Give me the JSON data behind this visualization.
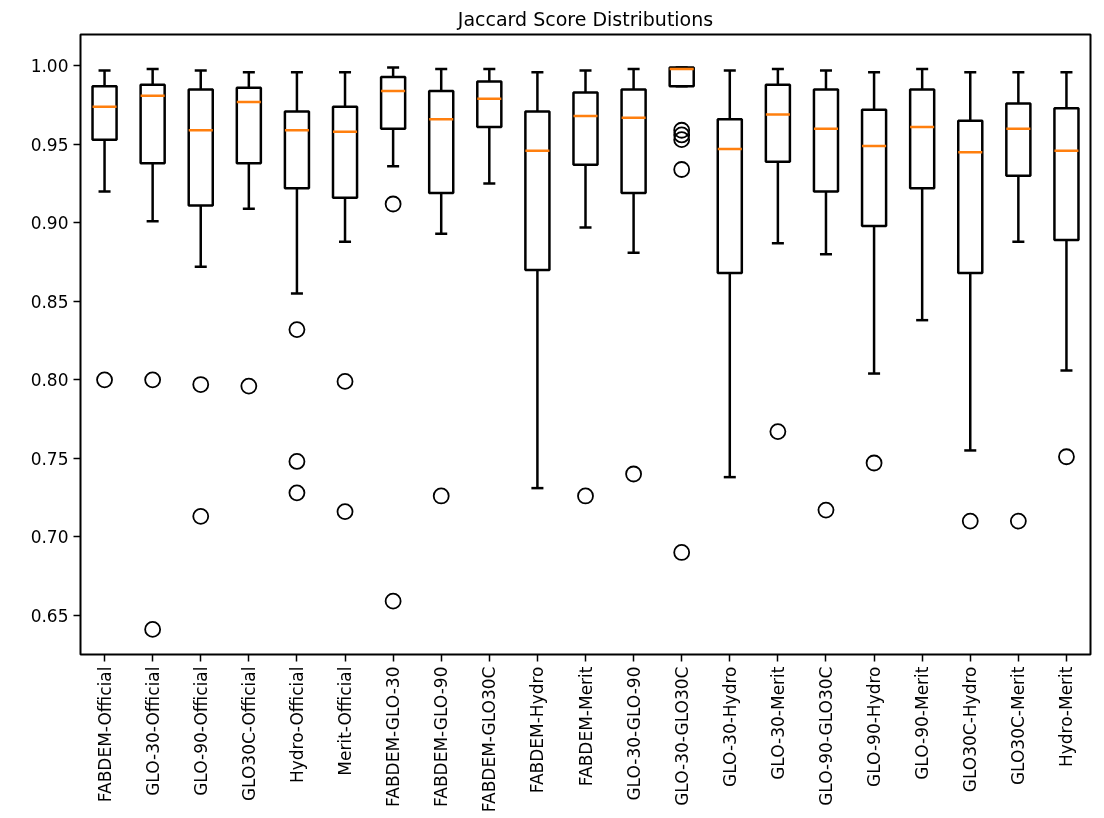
{
  "chart_data": {
    "type": "box",
    "title": "Jaccard Score Distributions",
    "categories": [
      "FABDEM-Official",
      "GLO-30-Official",
      "GLO-90-Official",
      "GLO30C-Official",
      "Hydro-Official",
      "Merit-Official",
      "FABDEM-GLO-30",
      "FABDEM-GLO-90",
      "FABDEM-GLO30C",
      "FABDEM-Hydro",
      "FABDEM-Merit",
      "GLO-30-GLO-90",
      "GLO-30-GLO30C",
      "GLO-30-Hydro",
      "GLO-30-Merit",
      "GLO-90-GLO30C",
      "GLO-90-Hydro",
      "GLO-90-Merit",
      "GLO30C-Hydro",
      "GLO30C-Merit",
      "Hydro-Merit"
    ],
    "boxes": [
      {
        "low": 0.92,
        "q1": 0.953,
        "median": 0.974,
        "q3": 0.987,
        "high": 0.997,
        "outliers": [
          0.8
        ]
      },
      {
        "low": 0.901,
        "q1": 0.938,
        "median": 0.981,
        "q3": 0.988,
        "high": 0.998,
        "outliers": [
          0.8,
          0.641
        ]
      },
      {
        "low": 0.872,
        "q1": 0.911,
        "median": 0.959,
        "q3": 0.985,
        "high": 0.997,
        "outliers": [
          0.797,
          0.713
        ]
      },
      {
        "low": 0.909,
        "q1": 0.938,
        "median": 0.977,
        "q3": 0.986,
        "high": 0.996,
        "outliers": [
          0.796
        ]
      },
      {
        "low": 0.855,
        "q1": 0.922,
        "median": 0.959,
        "q3": 0.971,
        "high": 0.996,
        "outliers": [
          0.832,
          0.748,
          0.728
        ]
      },
      {
        "low": 0.888,
        "q1": 0.916,
        "median": 0.958,
        "q3": 0.974,
        "high": 0.996,
        "outliers": [
          0.799,
          0.716
        ]
      },
      {
        "low": 0.936,
        "q1": 0.96,
        "median": 0.984,
        "q3": 0.993,
        "high": 0.999,
        "outliers": [
          0.912,
          0.659
        ]
      },
      {
        "low": 0.893,
        "q1": 0.919,
        "median": 0.966,
        "q3": 0.984,
        "high": 0.998,
        "outliers": [
          0.726
        ]
      },
      {
        "low": 0.925,
        "q1": 0.961,
        "median": 0.979,
        "q3": 0.99,
        "high": 0.998
      },
      {
        "low": 0.731,
        "q1": 0.87,
        "median": 0.946,
        "q3": 0.971,
        "high": 0.996
      },
      {
        "low": 0.897,
        "q1": 0.937,
        "median": 0.968,
        "q3": 0.983,
        "high": 0.997,
        "outliers": [
          0.726
        ]
      },
      {
        "low": 0.881,
        "q1": 0.919,
        "median": 0.967,
        "q3": 0.985,
        "high": 0.998,
        "outliers": [
          0.74
        ]
      },
      {
        "low": 0.987,
        "q1": 0.987,
        "median": 0.998,
        "q3": 0.999,
        "high": 0.999,
        "outliers": [
          0.959,
          0.956,
          0.953,
          0.934,
          0.69
        ]
      },
      {
        "low": 0.738,
        "q1": 0.868,
        "median": 0.947,
        "q3": 0.966,
        "high": 0.997
      },
      {
        "low": 0.887,
        "q1": 0.939,
        "median": 0.969,
        "q3": 0.988,
        "high": 0.998,
        "outliers": [
          0.767
        ]
      },
      {
        "low": 0.88,
        "q1": 0.92,
        "median": 0.96,
        "q3": 0.985,
        "high": 0.997,
        "outliers": [
          0.717
        ]
      },
      {
        "low": 0.804,
        "q1": 0.898,
        "median": 0.949,
        "q3": 0.972,
        "high": 0.996,
        "outliers": [
          0.747
        ]
      },
      {
        "low": 0.838,
        "q1": 0.922,
        "median": 0.961,
        "q3": 0.985,
        "high": 0.998
      },
      {
        "low": 0.755,
        "q1": 0.868,
        "median": 0.945,
        "q3": 0.965,
        "high": 0.996,
        "outliers": [
          0.71
        ]
      },
      {
        "low": 0.888,
        "q1": 0.93,
        "median": 0.96,
        "q3": 0.976,
        "high": 0.996,
        "outliers": [
          0.71
        ]
      },
      {
        "low": 0.806,
        "q1": 0.889,
        "median": 0.946,
        "q3": 0.973,
        "high": 0.996,
        "outliers": [
          0.751
        ]
      }
    ],
    "ylim": [
      0.625,
      1.02
    ],
    "yticks": [
      {
        "value": 0.65,
        "label": "0.65"
      },
      {
        "value": 0.7,
        "label": "0.70"
      },
      {
        "value": 0.75,
        "label": "0.75"
      },
      {
        "value": 0.8,
        "label": "0.80"
      },
      {
        "value": 0.85,
        "label": "0.85"
      },
      {
        "value": 0.9,
        "label": "0.90"
      },
      {
        "value": 0.95,
        "label": "0.95"
      },
      {
        "value": 1.0,
        "label": "1.00"
      }
    ],
    "grid": false
  }
}
